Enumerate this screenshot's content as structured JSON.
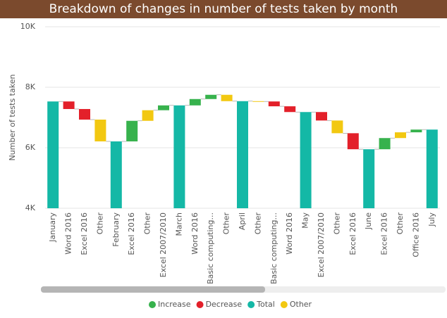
{
  "chart_data": {
    "type": "waterfall",
    "title": "Breakdown of changes in number of tests taken by month",
    "y_label": "Number of tests taken",
    "categories": [
      "January",
      "Word 2016",
      "Excel 2016",
      "Other",
      "February",
      "Excel 2016",
      "Other",
      "Excel 2007/2010",
      "March",
      "Word 2016",
      "Basic computing...",
      "Other",
      "April",
      "Other",
      "Basic computing...",
      "Word 2016",
      "May",
      "Excel 2007/2010",
      "Other",
      "Excel 2016",
      "June",
      "Excel 2016",
      "Other",
      "Office 2016",
      "July"
    ],
    "values": [
      7530,
      -250,
      -350,
      -720,
      6210,
      680,
      350,
      160,
      7400,
      210,
      140,
      -210,
      7540,
      -10,
      -160,
      -190,
      7180,
      -280,
      -420,
      -530,
      5950,
      370,
      190,
      90,
      6600
    ],
    "kinds": [
      2,
      1,
      1,
      3,
      2,
      0,
      3,
      0,
      2,
      0,
      0,
      3,
      2,
      3,
      1,
      1,
      2,
      1,
      3,
      1,
      2,
      0,
      3,
      0,
      2
    ],
    "legend": [
      {
        "name": "Increase",
        "color": "#37b24d"
      },
      {
        "name": "Decrease",
        "color": "#e3202a"
      },
      {
        "name": "Total",
        "color": "#14b8a6"
      },
      {
        "name": "Other",
        "color": "#f2c811"
      }
    ],
    "ylim": [
      4000,
      10000
    ],
    "yticks": [
      {
        "value": 4000,
        "label": "4K"
      },
      {
        "value": 6000,
        "label": "6K"
      },
      {
        "value": 8000,
        "label": "8K"
      },
      {
        "value": 10000,
        "label": "10K"
      }
    ],
    "grid": true
  }
}
